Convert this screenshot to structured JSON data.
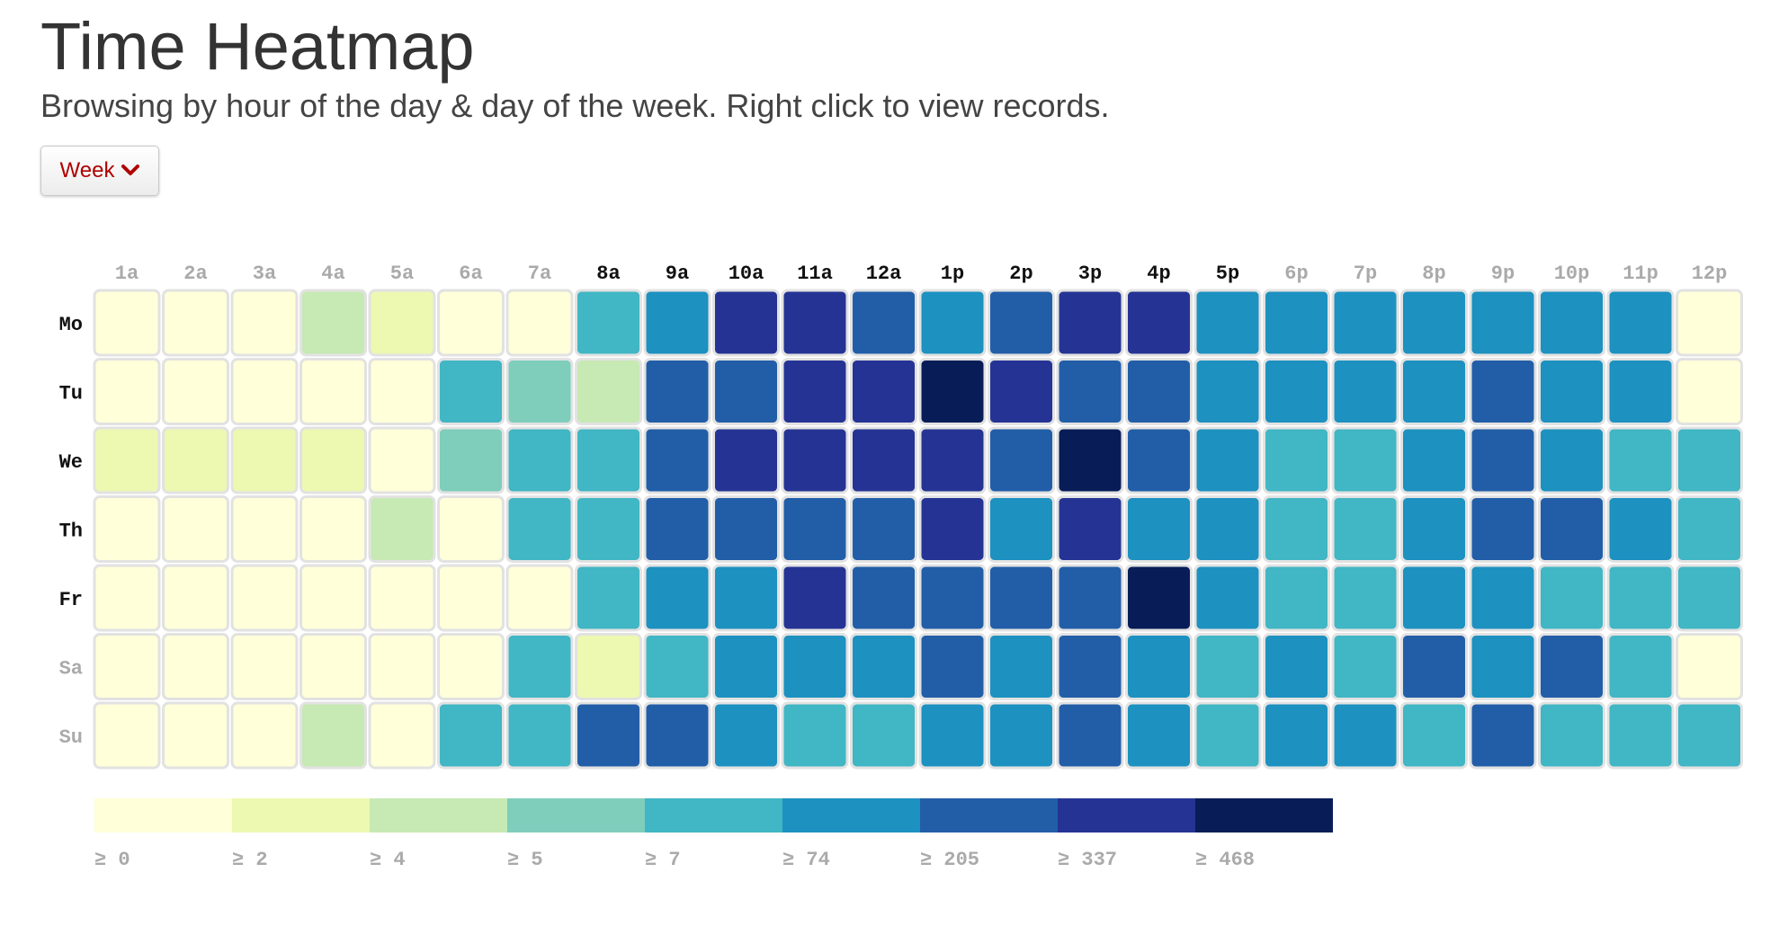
{
  "header": {
    "title": "Time Heatmap",
    "subtitle": "Browsing by hour of the day & day of the week. Right click to view records.",
    "range_button_label": "Week"
  },
  "chart_data": {
    "type": "heatmap",
    "x": [
      "1a",
      "2a",
      "3a",
      "4a",
      "5a",
      "6a",
      "7a",
      "8a",
      "9a",
      "10a",
      "11a",
      "12a",
      "1p",
      "2p",
      "3p",
      "4p",
      "5p",
      "6p",
      "7p",
      "8p",
      "9p",
      "10p",
      "11p",
      "12p"
    ],
    "x_active": [
      false,
      false,
      false,
      false,
      false,
      false,
      false,
      true,
      true,
      true,
      true,
      true,
      true,
      true,
      true,
      true,
      true,
      false,
      false,
      false,
      false,
      false,
      false,
      false
    ],
    "y": [
      "Mo",
      "Tu",
      "We",
      "Th",
      "Fr",
      "Sa",
      "Su"
    ],
    "y_active": [
      true,
      true,
      true,
      true,
      true,
      false,
      false
    ],
    "legend": {
      "thresholds": [
        0,
        2,
        4,
        5,
        7,
        74,
        205,
        337,
        468
      ],
      "labels": [
        "≥ 0",
        "≥ 2",
        "≥ 4",
        "≥ 5",
        "≥ 7",
        "≥ 74",
        "≥ 205",
        "≥ 337",
        "≥ 468"
      ],
      "colors": [
        "#ffffd9",
        "#edf8b1",
        "#c7e9b4",
        "#7fcdbb",
        "#41b6c4",
        "#1d91c0",
        "#225ea8",
        "#253494",
        "#081d58"
      ]
    },
    "bins": [
      [
        0,
        0,
        0,
        2,
        1,
        0,
        0,
        4,
        5,
        7,
        7,
        6,
        5,
        6,
        7,
        7,
        5,
        5,
        5,
        5,
        5,
        5,
        5,
        0
      ],
      [
        0,
        0,
        0,
        0,
        0,
        4,
        3,
        2,
        6,
        6,
        7,
        7,
        8,
        7,
        6,
        6,
        5,
        5,
        5,
        5,
        6,
        5,
        5,
        0
      ],
      [
        1,
        1,
        1,
        1,
        0,
        3,
        4,
        4,
        6,
        7,
        7,
        7,
        7,
        6,
        8,
        6,
        5,
        4,
        4,
        5,
        6,
        5,
        4,
        4
      ],
      [
        0,
        0,
        0,
        0,
        2,
        0,
        4,
        4,
        6,
        6,
        6,
        6,
        7,
        5,
        7,
        5,
        5,
        4,
        4,
        5,
        6,
        6,
        5,
        4
      ],
      [
        0,
        0,
        0,
        0,
        0,
        0,
        0,
        4,
        5,
        5,
        7,
        6,
        6,
        6,
        6,
        8,
        5,
        4,
        4,
        5,
        5,
        4,
        4,
        4
      ],
      [
        0,
        0,
        0,
        0,
        0,
        0,
        4,
        1,
        4,
        5,
        5,
        5,
        6,
        5,
        6,
        5,
        4,
        5,
        4,
        6,
        5,
        6,
        4,
        0
      ],
      [
        0,
        0,
        0,
        2,
        0,
        4,
        4,
        6,
        6,
        5,
        4,
        4,
        5,
        5,
        6,
        5,
        4,
        5,
        5,
        4,
        6,
        4,
        4,
        4
      ]
    ],
    "bin_meaning": "index into legend.thresholds/colors",
    "grid": false,
    "legend_placement": "bottom"
  }
}
